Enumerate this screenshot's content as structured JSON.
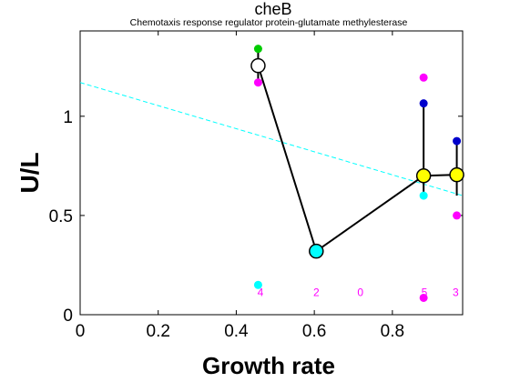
{
  "chart_data": {
    "type": "scatter",
    "title": "cheB",
    "subtitle": "Chemotaxis response regulator protein-glutamate methylesterase",
    "xlabel": "Growth rate",
    "ylabel": "U/L",
    "xlim": [
      0,
      0.98
    ],
    "ylim": [
      0,
      1.43
    ],
    "xticks": [
      0,
      0.2,
      0.4,
      0.6,
      0.8
    ],
    "xtick_labels": [
      "0",
      "0.2",
      "0.4",
      "0.6",
      "0.8"
    ],
    "yticks": [
      0,
      0.5,
      1
    ],
    "ytick_labels": [
      "0",
      "0.5",
      "1"
    ],
    "grid": false,
    "colors": {
      "mean_line": "#000000",
      "fit_line": "#00ffff",
      "count_labels": "#ff00ff"
    },
    "trend_line": {
      "x": [
        0,
        0.98
      ],
      "y": [
        1.17,
        0.6
      ]
    },
    "mean_series": {
      "x": [
        0.456,
        0.605,
        0.88,
        0.965
      ],
      "y": [
        1.255,
        0.32,
        0.7,
        0.705
      ],
      "fill_colors": [
        "#ffffff",
        "#00ffff",
        "#ffff00",
        "#ffff00"
      ]
    },
    "vertical_ranges": [
      {
        "x": 0.456,
        "ymin": 1.17,
        "ymax": 1.34
      },
      {
        "x": 0.88,
        "ymin": 0.6,
        "ymax": 1.065
      },
      {
        "x": 0.965,
        "ymin": 0.6,
        "ymax": 0.875
      }
    ],
    "replicate_points": [
      {
        "x": 0.456,
        "y": 1.34,
        "color": "#00cc00"
      },
      {
        "x": 0.456,
        "y": 1.17,
        "color": "#ff00ff"
      },
      {
        "x": 0.456,
        "y": 0.15,
        "color": "#00ffff"
      },
      {
        "x": 0.88,
        "y": 1.195,
        "color": "#ff00ff"
      },
      {
        "x": 0.88,
        "y": 1.065,
        "color": "#0000cc"
      },
      {
        "x": 0.88,
        "y": 0.6,
        "color": "#00ffff"
      },
      {
        "x": 0.88,
        "y": 0.085,
        "color": "#ff00ff"
      },
      {
        "x": 0.965,
        "y": 0.875,
        "color": "#0000cc"
      },
      {
        "x": 0.965,
        "y": 0.5,
        "color": "#ff00ff"
      }
    ],
    "count_labels": [
      {
        "x": 0.462,
        "y": 0.095,
        "text": "4"
      },
      {
        "x": 0.605,
        "y": 0.095,
        "text": "2"
      },
      {
        "x": 0.718,
        "y": 0.095,
        "text": "0"
      },
      {
        "x": 0.882,
        "y": 0.095,
        "text": "5"
      },
      {
        "x": 0.962,
        "y": 0.095,
        "text": "3"
      }
    ]
  }
}
